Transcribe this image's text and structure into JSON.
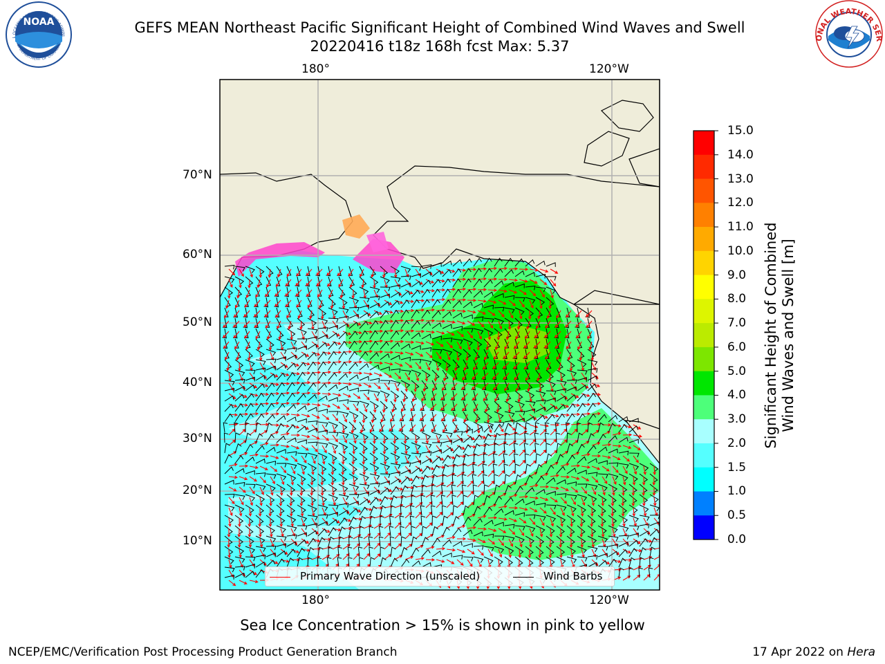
{
  "title": {
    "line1": "GEFS MEAN Northeast Pacific Significant Height of Combined Wind Waves and Swell",
    "line2": "20220416 t18z 168h fcst   Max: 5.37"
  },
  "axes": {
    "lon_top": [
      "180°",
      "120°W"
    ],
    "lon_bottom": [
      "180°",
      "120°W"
    ],
    "lat": [
      "70°N",
      "60°N",
      "50°N",
      "40°N",
      "30°N",
      "20°N",
      "10°N"
    ]
  },
  "legend": {
    "wave_direction": "Primary Wave Direction (unscaled)",
    "wind_barbs": "Wind Barbs",
    "wave_color": "#ff0000",
    "barb_color": "#000000"
  },
  "colorbar": {
    "title_line1": "Significant Height of Combined",
    "title_line2": "Wind Waves and Swell [m]",
    "ticks": [
      "15.0",
      "14.0",
      "13.0",
      "12.0",
      "11.0",
      "10.0",
      "9.0",
      "8.0",
      "7.0",
      "6.0",
      "5.0",
      "4.0",
      "3.0",
      "2.0",
      "1.5",
      "1.0",
      "0.5",
      "0.0"
    ],
    "colors": [
      "#ff0000",
      "#ff2a00",
      "#ff5500",
      "#ff8000",
      "#ffaa00",
      "#ffd400",
      "#ffff00",
      "#ddf500",
      "#bbeb00",
      "#7de600",
      "#00e600",
      "#4dff7a",
      "#a8ffff",
      "#55ffff",
      "#00ffff",
      "#0080ff",
      "#0000ff"
    ]
  },
  "colors": {
    "land": "#efedda",
    "ocean_low": "#55ffff",
    "ocean_mid": "#a8ffff",
    "wave_green": "#4dff7a",
    "wave_bright": "#00e600",
    "wave_peak": "#7de600",
    "ice": "#ff44cc"
  },
  "logos": {
    "noaa_text": "NOAA",
    "noaa_ring": "NATIONAL OCEANIC AND ATMOSPHERIC ADMINISTRATION",
    "noaa_ring_bottom": "U.S. DEPARTMENT OF COMMERCE",
    "nws_ring": "NATIONAL WEATHER SERVICE"
  },
  "footnote": "Sea Ice Concentration > 15% is shown in pink to yellow",
  "credit": "NCEP/EMC/Verification Post Processing Product Generation Branch",
  "date_prefix": "17 Apr 2022 on ",
  "date_machine": "Hera"
}
